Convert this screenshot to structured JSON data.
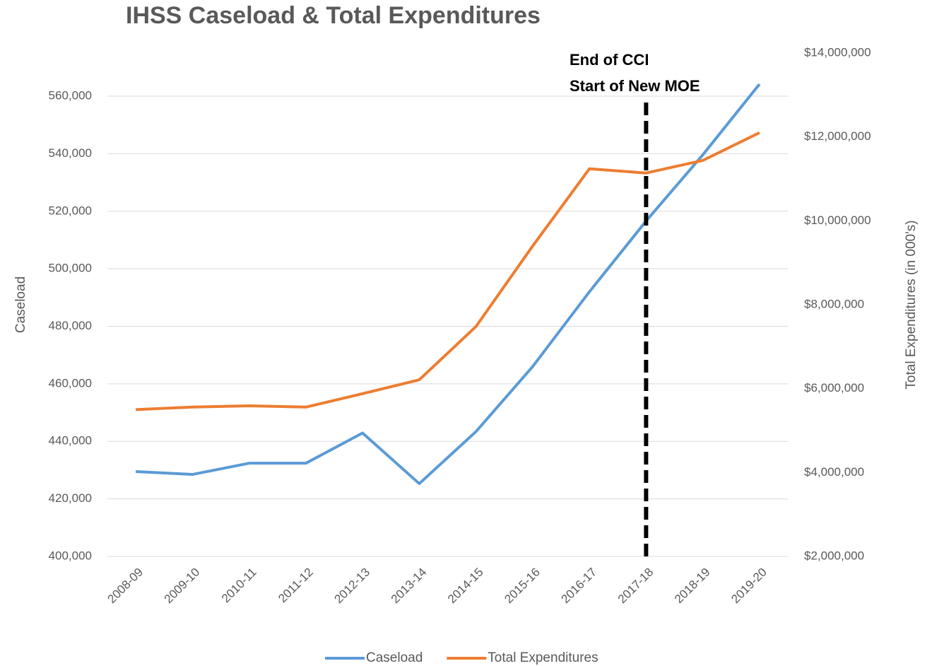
{
  "chart_data": {
    "type": "line",
    "title": "IHSS Caseload & Total Expenditures",
    "ylabel": "Caseload",
    "y2label": "Total Expenditures (in 000's)",
    "categories": [
      "2008-09",
      "2009-10",
      "2010-11",
      "2011-12",
      "2012-13",
      "2013-14",
      "2014-15",
      "2015-16",
      "2016-17",
      "2017-18",
      "2018-19",
      "2019-20"
    ],
    "series": [
      {
        "name": "Caseload",
        "color": "#5b9bd5",
        "axis": "y",
        "values": [
          429500,
          428500,
          432400,
          432400,
          442900,
          425300,
          443400,
          466000,
          492000,
          516600,
          539600,
          564200
        ]
      },
      {
        "name": "Total Expenditures",
        "color": "#ed7d31",
        "axis": "y2",
        "values": [
          5500000,
          5560000,
          5590000,
          5560000,
          5880000,
          6210000,
          7480000,
          9400000,
          11240000,
          11140000,
          11440000,
          12100000
        ]
      }
    ],
    "ylim": [
      400000,
      575000
    ],
    "yticks": [
      {
        "value": 400000,
        "label": "400,000"
      },
      {
        "value": 420000,
        "label": "420,000"
      },
      {
        "value": 440000,
        "label": "440,000"
      },
      {
        "value": 460000,
        "label": "460,000"
      },
      {
        "value": 480000,
        "label": "480,000"
      },
      {
        "value": 500000,
        "label": "500,000"
      },
      {
        "value": 520000,
        "label": "520,000"
      },
      {
        "value": 540000,
        "label": "540,000"
      },
      {
        "value": 560000,
        "label": "560,000"
      }
    ],
    "y2lim": [
      2000000,
      14000000
    ],
    "y2ticks": [
      {
        "value": 2000000,
        "label": "$2,000,000"
      },
      {
        "value": 4000000,
        "label": "$4,000,000"
      },
      {
        "value": 6000000,
        "label": "$6,000,000"
      },
      {
        "value": 8000000,
        "label": "$8,000,000"
      },
      {
        "value": 10000000,
        "label": "$10,000,000"
      },
      {
        "value": 12000000,
        "label": "$12,000,000"
      },
      {
        "value": 14000000,
        "label": "$14,000,000"
      }
    ],
    "grid": true,
    "legend": "bottom",
    "vline": {
      "x": "2017-18",
      "label": [
        "End of CCI",
        "Start of New MOE"
      ]
    }
  }
}
